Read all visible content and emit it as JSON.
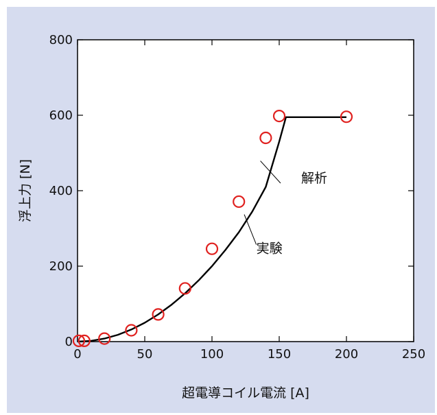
{
  "colors": {
    "background": "#d6dcef",
    "plot_background": "#ffffff",
    "analysis_line": "#000000",
    "experiment_marker": "#e0211f"
  },
  "chart_data": {
    "type": "line",
    "title": "",
    "xlabel": "超電導コイル電流 [A]",
    "ylabel": "浮上力 [N]",
    "xlim": [
      0,
      250
    ],
    "ylim": [
      0,
      800
    ],
    "x_ticks": [
      0,
      50,
      100,
      150,
      200,
      250
    ],
    "y_ticks": [
      0,
      200,
      400,
      600,
      800
    ],
    "grid": false,
    "legend": "none",
    "series": [
      {
        "name": "解析",
        "kind": "line",
        "points": [
          [
            0,
            0
          ],
          [
            10,
            2
          ],
          [
            20,
            8
          ],
          [
            30,
            18
          ],
          [
            40,
            32
          ],
          [
            50,
            50
          ],
          [
            60,
            72
          ],
          [
            70,
            98
          ],
          [
            80,
            128
          ],
          [
            90,
            162
          ],
          [
            100,
            200
          ],
          [
            110,
            243
          ],
          [
            120,
            290
          ],
          [
            130,
            345
          ],
          [
            140,
            410
          ],
          [
            150,
            530
          ],
          [
            155,
            595
          ],
          [
            200,
            595
          ]
        ],
        "annotation_from": [
          136,
          479
        ],
        "annotation_to": [
          151,
          420
        ]
      },
      {
        "name": "実験",
        "kind": "scatter",
        "marker": "circle",
        "points": [
          [
            1,
            2
          ],
          [
            5,
            2
          ],
          [
            20,
            8
          ],
          [
            40,
            30
          ],
          [
            60,
            72
          ],
          [
            80,
            141
          ],
          [
            100,
            246
          ],
          [
            120,
            371
          ],
          [
            140,
            540
          ],
          [
            150,
            598
          ],
          [
            200,
            596
          ]
        ],
        "annotation_from": [
          124,
          337
        ],
        "annotation_to": [
          133,
          257
        ]
      }
    ]
  }
}
